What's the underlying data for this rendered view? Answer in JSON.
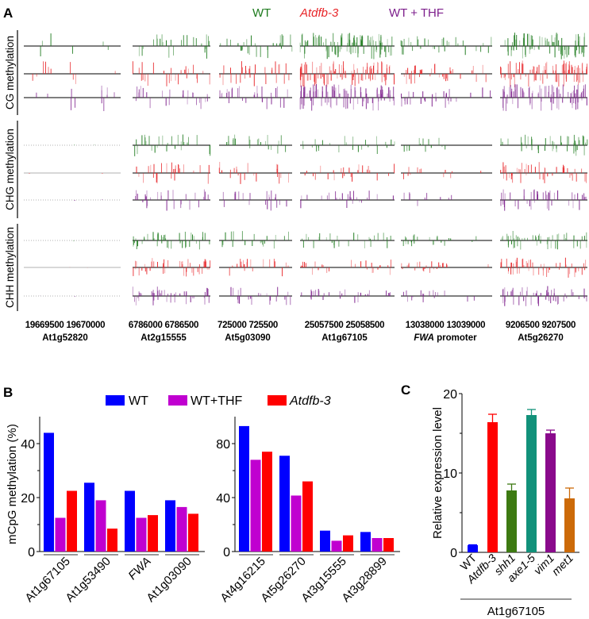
{
  "panel_labels": {
    "a": "A",
    "b": "B",
    "c": "C"
  },
  "chart_data": [
    {
      "type": "genome-track",
      "panel": "A",
      "legend": [
        {
          "name": "WT",
          "color": "#1e7b1e",
          "italic": false
        },
        {
          "name": "Atdfb-3",
          "color": "#e8262a",
          "italic": true
        },
        {
          "name": "WT + THF",
          "color": "#7d1f8c",
          "italic": false
        }
      ],
      "rows": [
        "CG methylation",
        "CHG methylation",
        "CHH methylation"
      ],
      "loci": [
        {
          "start": "19669500",
          "end": "19670000",
          "gene": "At1g52820",
          "suffix": "",
          "italic": false
        },
        {
          "start": "6786000",
          "end": "6786500",
          "gene": "At2g15555",
          "suffix": "",
          "italic": false
        },
        {
          "start": "725000",
          "end": "725500",
          "gene": "At5g03090",
          "suffix": "",
          "italic": false
        },
        {
          "start": "25057500",
          "end": "25058500",
          "gene": "At1g67105",
          "suffix": "",
          "italic": false
        },
        {
          "start": "13038000",
          "end": "13039000",
          "gene": "FWA",
          "suffix": " promoter",
          "italic": true
        },
        {
          "start": "9206500",
          "end": "9207500",
          "gene": "At5g26270",
          "suffix": "",
          "italic": false
        }
      ]
    },
    {
      "type": "bar",
      "panel": "B",
      "ylabel": "mCpG methylation (%)",
      "legend": [
        {
          "name": "WT",
          "color": "#0000ff",
          "italic": false
        },
        {
          "name": "WT+THF",
          "color": "#c000d0",
          "italic": false
        },
        {
          "name": "Atdfb-3",
          "color": "#ff0000",
          "italic": true
        }
      ],
      "subplots": [
        {
          "categories": [
            "At1g67105",
            "At1g53490",
            "FWA",
            "At1g03090"
          ],
          "italic": [
            false,
            false,
            true,
            false
          ],
          "ylim": [
            0,
            50
          ],
          "yticks": [
            0,
            20,
            40
          ],
          "minor_ticks": [
            10,
            30
          ],
          "series": [
            {
              "name": "WT",
              "values": [
                44,
                25.5,
                22.5,
                19
              ]
            },
            {
              "name": "WT+THF",
              "values": [
                12.5,
                19,
                12.5,
                16.5
              ]
            },
            {
              "name": "Atdfb-3",
              "values": [
                22.5,
                8.5,
                13.5,
                14
              ]
            }
          ]
        },
        {
          "categories": [
            "At4g16215",
            "At5g26270",
            "At3g15555",
            "At3g28899"
          ],
          "italic": [
            false,
            false,
            false,
            false
          ],
          "ylim": [
            0,
            100
          ],
          "yticks": [
            0,
            40,
            80
          ],
          "minor_ticks": [
            20,
            60
          ],
          "series": [
            {
              "name": "WT",
              "values": [
                93,
                71,
                15.5,
                14.5
              ]
            },
            {
              "name": "WT+THF",
              "values": [
                68,
                41.5,
                8,
                10
              ]
            },
            {
              "name": "Atdfb-3",
              "values": [
                74,
                52,
                12,
                10
              ]
            }
          ]
        }
      ]
    },
    {
      "type": "bar",
      "panel": "C",
      "ylabel": "Relative expression level",
      "xlabel": "At1g67105",
      "ylim": [
        0,
        20
      ],
      "yticks": [
        0,
        10,
        20
      ],
      "minor_ticks": [
        5,
        15
      ],
      "categories": [
        "WT",
        "Atdfb-3",
        "shh1",
        "axe1-5",
        "vim1",
        "met1"
      ],
      "italic": [
        false,
        true,
        true,
        true,
        true,
        true
      ],
      "values": [
        0.9,
        16.4,
        7.8,
        17.3,
        15.0,
        6.8
      ],
      "errors": [
        0.05,
        1.0,
        0.8,
        0.7,
        0.4,
        1.3
      ],
      "colors": [
        "#0000ff",
        "#ff0000",
        "#3d7a12",
        "#12917a",
        "#8a0a8c",
        "#cc6a08"
      ]
    }
  ]
}
